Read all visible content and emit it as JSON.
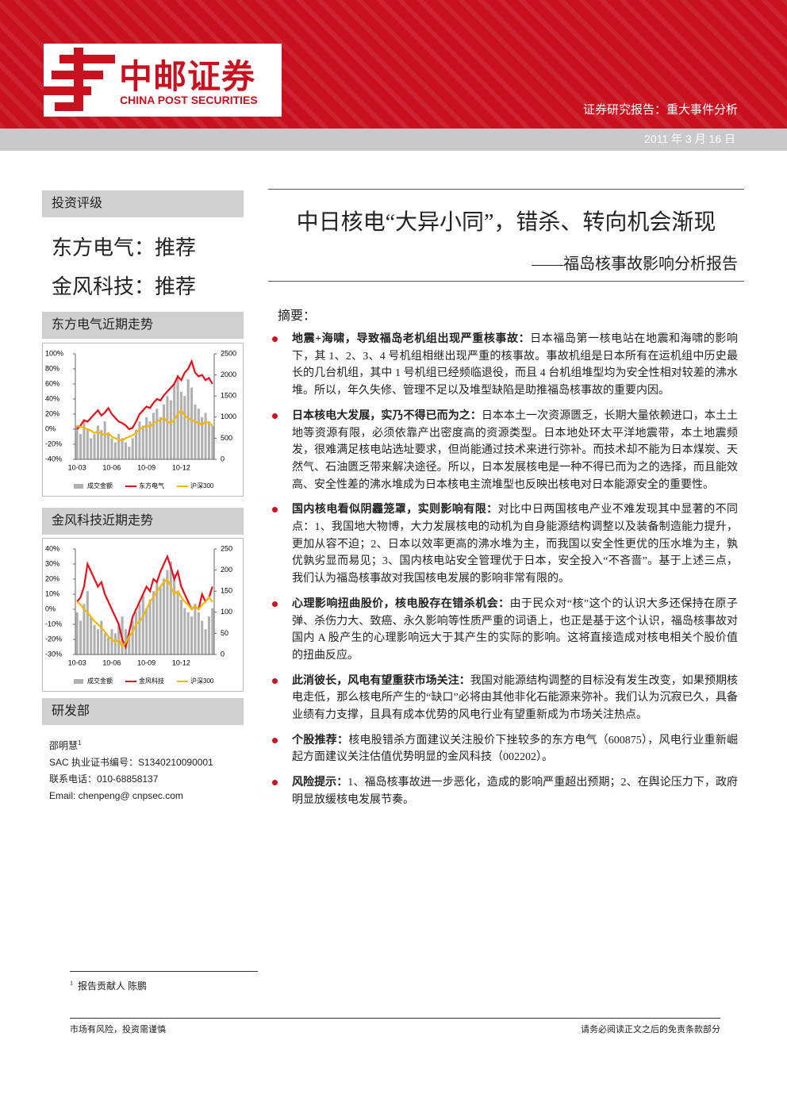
{
  "header": {
    "logo_cn": "中邮证券",
    "logo_en": "CHINA POST SECURITIES",
    "report_type": "证券研究报告：重大事件分析",
    "date": "2011 年 3 月 16 日"
  },
  "sidebar": {
    "rating_heading": "投资评级",
    "ratings": [
      "东方电气：推荐",
      "金风科技：推荐"
    ],
    "department_heading": "研发部",
    "author": "邵明慧",
    "author_mark": "1",
    "contact": [
      "SAC 执业证书编号：S1340210090001",
      "联系电话：010-68858137",
      "Email: chenpeng@ cnpsec.com"
    ]
  },
  "chart_data": [
    {
      "type": "combo",
      "title": "东方电气近期走势",
      "categories": [
        "10-03",
        null,
        null,
        null,
        null,
        null,
        null,
        null,
        null,
        null,
        "10-06",
        null,
        null,
        null,
        null,
        null,
        null,
        null,
        null,
        null,
        "10-09",
        null,
        null,
        null,
        null,
        null,
        null,
        null,
        null,
        null,
        "10-12",
        null,
        null,
        null,
        null,
        null,
        null,
        null,
        null,
        null
      ],
      "series": [
        {
          "name": "成交金额",
          "type": "bar",
          "axis": "y2",
          "color": "#b0b0b0",
          "values": [
            800,
            600,
            900,
            700,
            500,
            600,
            800,
            700,
            900,
            600,
            500,
            400,
            600,
            500,
            400,
            300,
            500,
            700,
            900,
            800,
            1000,
            900,
            1100,
            1200,
            1000,
            1300,
            1500,
            1400,
            1800,
            2000,
            1600,
            1500,
            1900,
            1700,
            1300,
            1200,
            1000,
            1100,
            900,
            800
          ]
        },
        {
          "name": "东方电气",
          "type": "line",
          "color": "#e8101a",
          "values": [
            0,
            5,
            12,
            10,
            15,
            20,
            25,
            18,
            22,
            28,
            20,
            15,
            10,
            8,
            5,
            0,
            2,
            10,
            20,
            25,
            30,
            28,
            35,
            40,
            38,
            45,
            50,
            55,
            60,
            70,
            65,
            75,
            80,
            90,
            75,
            70,
            72,
            65,
            68,
            60
          ]
        },
        {
          "name": "沪深300",
          "type": "line",
          "color": "#f5b800",
          "values": [
            5,
            3,
            2,
            0,
            -2,
            -5,
            -3,
            -6,
            -8,
            -5,
            -10,
            -12,
            -14,
            -15,
            -12,
            -10,
            -8,
            -5,
            0,
            2,
            5,
            3,
            8,
            10,
            12,
            15,
            10,
            8,
            12,
            20,
            25,
            18,
            15,
            12,
            10,
            8,
            6,
            10,
            8,
            5
          ]
        }
      ],
      "ylim": [
        -40,
        100
      ],
      "yticks": [
        {
          "value": 100,
          "label": "100%"
        },
        {
          "value": 80,
          "label": "80%"
        },
        {
          "value": 60,
          "label": "60%"
        },
        {
          "value": 40,
          "label": "40%"
        },
        {
          "value": 20,
          "label": "20%"
        },
        {
          "value": 0,
          "label": "0%"
        },
        {
          "value": -20,
          "label": "-20%"
        },
        {
          "value": -40,
          "label": "-40%"
        }
      ],
      "y2lim": [
        0,
        2500
      ],
      "y2ticks": [
        2500,
        2000,
        1500,
        1000,
        500,
        0
      ]
    },
    {
      "type": "combo",
      "title": "金风科技近期走势",
      "categories": [
        "10-03",
        null,
        null,
        null,
        null,
        null,
        null,
        null,
        null,
        null,
        "10-06",
        null,
        null,
        null,
        null,
        null,
        null,
        null,
        null,
        null,
        "10-09",
        null,
        null,
        null,
        null,
        null,
        null,
        null,
        null,
        null,
        "10-12",
        null,
        null,
        null,
        null,
        null,
        null,
        null,
        null,
        null
      ],
      "series": [
        {
          "name": "成交金额",
          "type": "bar",
          "axis": "y2",
          "color": "#b0b0b0",
          "values": [
            100,
            80,
            120,
            150,
            90,
            70,
            60,
            80,
            50,
            40,
            60,
            50,
            70,
            90,
            60,
            50,
            80,
            100,
            120,
            140,
            110,
            130,
            150,
            170,
            160,
            180,
            200,
            220,
            190,
            150,
            130,
            110,
            100,
            90,
            120,
            100,
            80,
            60,
            90,
            110
          ]
        },
        {
          "name": "金风科技",
          "type": "line",
          "color": "#e8101a",
          "values": [
            5,
            8,
            15,
            30,
            25,
            20,
            15,
            18,
            10,
            5,
            0,
            -5,
            -10,
            -20,
            -25,
            -15,
            -5,
            0,
            5,
            10,
            15,
            12,
            20,
            18,
            25,
            30,
            35,
            28,
            20,
            25,
            15,
            10,
            5,
            0,
            2,
            0,
            10,
            5,
            8,
            15
          ]
        },
        {
          "name": "沪深300",
          "type": "line",
          "color": "#f5b800",
          "values": [
            5,
            3,
            0,
            -2,
            -5,
            -8,
            -10,
            -12,
            -15,
            -18,
            -20,
            -22,
            -20,
            -25,
            -22,
            -18,
            -15,
            -10,
            -8,
            -5,
            0,
            5,
            8,
            12,
            15,
            18,
            20,
            15,
            10,
            12,
            8,
            5,
            3,
            0,
            2,
            0,
            3,
            5,
            8,
            5
          ]
        }
      ],
      "ylim": [
        -30,
        40
      ],
      "yticks": [
        {
          "value": 40,
          "label": "40%"
        },
        {
          "value": 30,
          "label": "30%"
        },
        {
          "value": 20,
          "label": "20%"
        },
        {
          "value": 10,
          "label": "10%"
        },
        {
          "value": 0,
          "label": "0%"
        },
        {
          "value": -10,
          "label": "-10%"
        },
        {
          "value": -20,
          "label": "-20%"
        },
        {
          "value": -30,
          "label": "-30%"
        }
      ],
      "y2lim": [
        0,
        250
      ],
      "y2ticks": [
        250,
        200,
        150,
        100,
        50,
        0
      ]
    }
  ],
  "main": {
    "title": "中日核电“大异小同”，错杀、转向机会渐现",
    "subtitle": "——福岛核事故影响分析报告",
    "summary_heading": "摘要：",
    "bullets": [
      {
        "heading": "地震+海啸，导致福岛老机组出现严重核事故：",
        "body": "日本福岛第一核电站在地震和海啸的影响下，其 1、2、3、4 号机组相继出现严重的核事故。事故机组是日本所有在运机组中历史最长的几台机组，其中 1 号机组已经频临退役，而且 4 台机组堆型均为安全性相对较差的沸水堆。所以，年久失修、管理不足以及堆型缺陷是助推福岛核事故的重要内因。"
      },
      {
        "heading": "日本核电大发展，实乃不得已而为之：",
        "body": "日本本土一次资源匮乏，长期大量依赖进口，本土土地等资源有限，必须依靠产出密度高的资源类型。日本地处环太平洋地震带，本土地震频发，很难满足核电站选址要求，但尚能通过技术来进行弥补。而技术却不能为日本煤炭、天然气、石油匮乏带来解决途径。所以，日本发展核电是一种不得已而为之的选择，而且能效高、安全性差的沸水堆成为日本核电主流堆型也反映出核电对日本能源安全的重要性。"
      },
      {
        "heading": "国内核电看似阴霾笼罩，实则影响有限：",
        "body": "对比中日两国核电产业不难发现其中显著的不同点：1、我国地大物博，大力发展核电的动机为自身能源结构调整以及装备制造能力提升，更加从容不迫；2、日本以效率更高的沸水堆为主，而我国以安全性更优的压水堆为主，孰优孰劣显而易见；3、国内核电站安全管理优于日本，安全投入“不吝啬”。基于上述三点，我们认为福岛核事故对我国核电发展的影响非常有限的。"
      },
      {
        "heading": "心理影响扭曲股价，核电股存在错杀机会：",
        "body": "由于民众对“核”这个的认识大多还保持在原子弹、杀伤力大、致癌、永久影响等性质严重的词语上，也正是基于这个认识，福岛核事故对国内 A 股产生的心理影响远大于其产生的实际的影响。这将直接造成对核电相关个股价值的扭曲反应。"
      },
      {
        "heading": "此消彼长，风电有望重获市场关注：",
        "body": "我国对能源结构调整的目标没有发生改变，如果预期核电走低，那么核电所产生的“缺口”必将由其他非化石能源来弥补。我们认为沉寂已久，具备业绩有力支撑，且具有成本优势的风电行业有望重新成为市场关注热点。"
      },
      {
        "heading": "个股推荐：",
        "body": "核电股错杀方面建议关注股价下挫较多的东方电气（600875），风电行业重新崛起方面建议关注估值优势明显的金风科技（002202）。"
      },
      {
        "heading": "风险提示：",
        "body": "1、福岛核事故进一步恶化，造成的影响严重超出预期；2、在舆论压力下，政府明显放缓核电发展节奏。"
      }
    ]
  },
  "footnote": {
    "mark": "1",
    "text": "报告贡献人 陈鹏"
  },
  "footer": {
    "left": "市场有风险，投资需谨慎",
    "right": "请务必阅读正文之后的免责条款部分"
  }
}
